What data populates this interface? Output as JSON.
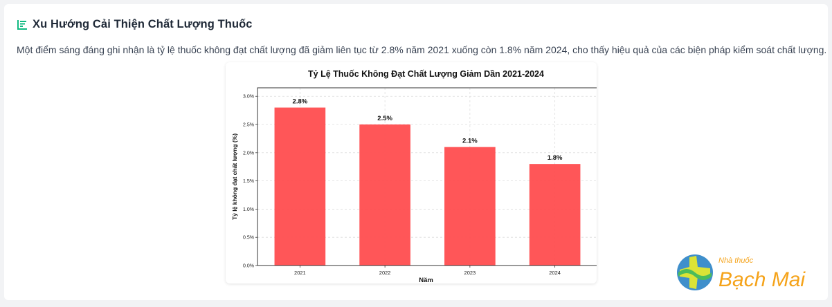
{
  "section": {
    "title": "Xu Hướng Cải Thiện Chất Lượng Thuốc",
    "title_icon": "bar-chart-icon",
    "accent_color": "#10b981",
    "description": "Một điểm sáng đáng ghi nhận là tỷ lệ thuốc không đạt chất lượng đã giảm liên tục từ 2.8% năm 2021 xuống còn 1.8% năm 2024, cho thấy hiệu quả của các biện pháp kiểm soát chất lượng."
  },
  "chart_data": {
    "type": "bar",
    "title": "Tỷ Lệ Thuốc Không Đạt Chất Lượng Giảm Dần 2021-2024",
    "xlabel": "Năm",
    "ylabel": "Tỷ lệ không đạt chất lượng (%)",
    "categories": [
      "2021",
      "2022",
      "2023",
      "2024"
    ],
    "values": [
      2.8,
      2.5,
      2.1,
      1.8
    ],
    "value_labels": [
      "2.8%",
      "2.5%",
      "2.1%",
      "1.8%"
    ],
    "yticks": [
      "0.0%",
      "0.5%",
      "1.0%",
      "1.5%",
      "2.0%",
      "2.5%",
      "3.0%"
    ],
    "ytick_values": [
      0,
      0.5,
      1.0,
      1.5,
      2.0,
      2.5,
      3.0
    ],
    "ylim": [
      0,
      3.15
    ],
    "grid": true,
    "bar_color": "#ff4d4f"
  },
  "watermark": {
    "small_text": "Nhà thuốc",
    "brand_text": "Bạch Mai"
  }
}
